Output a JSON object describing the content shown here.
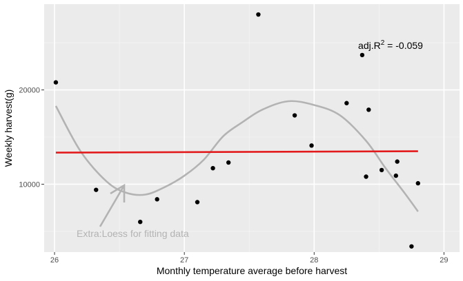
{
  "chart_data": {
    "type": "scatter",
    "title": "",
    "xlabel": "Monthly temperature average before harvest",
    "ylabel": "Weekly harvest(g)",
    "xlim": [
      25.92,
      29.12
    ],
    "ylim": [
      2800,
      29100
    ],
    "x_ticks": [
      26,
      27,
      28,
      29
    ],
    "x_tick_labels": [
      "26",
      "27",
      "28",
      "29"
    ],
    "y_ticks": [
      10000,
      20000
    ],
    "y_tick_labels": [
      "10000",
      "20000"
    ],
    "grid": true,
    "points": [
      {
        "x": 26.01,
        "y": 20800
      },
      {
        "x": 26.32,
        "y": 9400
      },
      {
        "x": 26.66,
        "y": 6000
      },
      {
        "x": 26.79,
        "y": 8400
      },
      {
        "x": 27.1,
        "y": 8100
      },
      {
        "x": 27.22,
        "y": 11700
      },
      {
        "x": 27.34,
        "y": 12300
      },
      {
        "x": 27.57,
        "y": 28000
      },
      {
        "x": 27.85,
        "y": 17300
      },
      {
        "x": 27.98,
        "y": 14100
      },
      {
        "x": 28.25,
        "y": 18600
      },
      {
        "x": 28.37,
        "y": 23700
      },
      {
        "x": 28.4,
        "y": 10800
      },
      {
        "x": 28.42,
        "y": 17900
      },
      {
        "x": 28.52,
        "y": 11500
      },
      {
        "x": 28.63,
        "y": 10900
      },
      {
        "x": 28.64,
        "y": 12400
      },
      {
        "x": 28.75,
        "y": 3400
      },
      {
        "x": 28.8,
        "y": 10100
      }
    ],
    "linear_fit": {
      "color": "#e31a1c",
      "x": [
        26.01,
        28.8
      ],
      "y": [
        13350,
        13500
      ]
    },
    "loess_fit": {
      "color": "#b3b3b3",
      "x": [
        26.01,
        26.2,
        26.4,
        26.55,
        26.7,
        26.85,
        27.0,
        27.15,
        27.3,
        27.45,
        27.6,
        27.8,
        28.0,
        28.2,
        28.4,
        28.55,
        28.7,
        28.8
      ],
      "y": [
        18300,
        13500,
        10300,
        9100,
        8900,
        9700,
        10900,
        12600,
        15100,
        16600,
        17900,
        18800,
        18400,
        17300,
        14600,
        11700,
        9000,
        7100
      ]
    },
    "annotations": {
      "r2_text": "adj.R² = -0.059",
      "loess_label": "Extra:Loess for fitting data"
    }
  }
}
